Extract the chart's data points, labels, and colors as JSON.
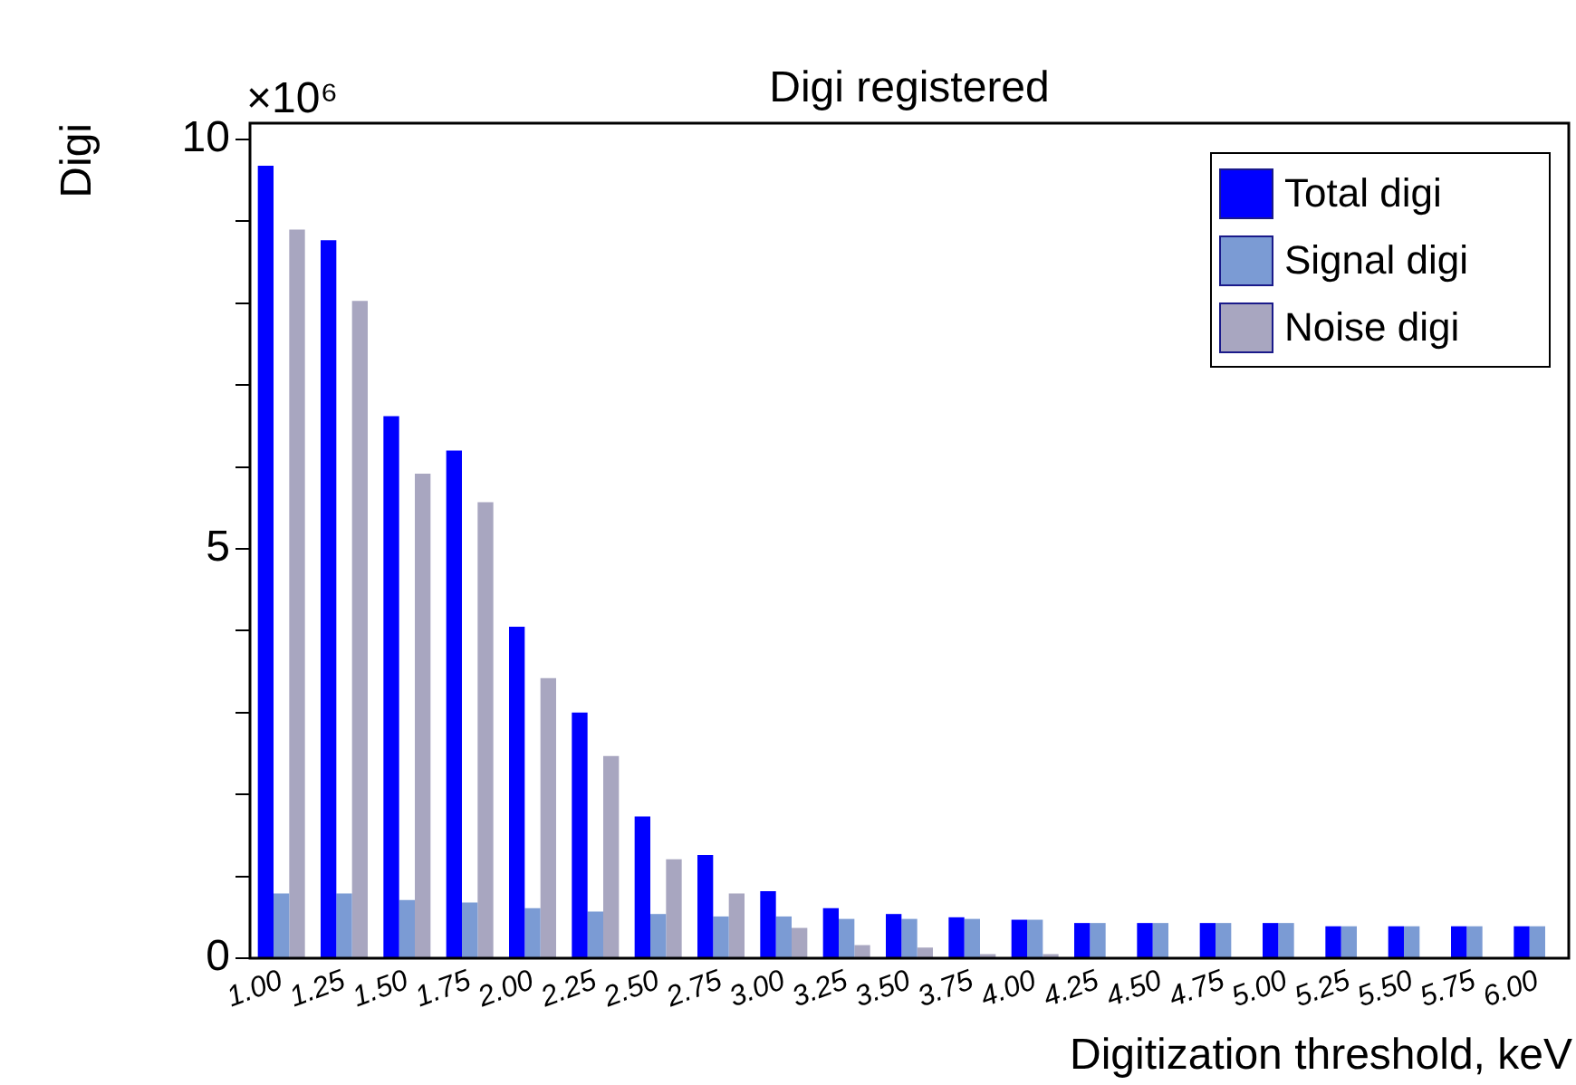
{
  "chart_data": {
    "type": "bar",
    "title": "Digi registered",
    "xlabel": "Digitization threshold, keV",
    "ylabel": "Digi",
    "annotations": [
      "×10⁶"
    ],
    "categories": [
      "1.00",
      "1.25",
      "1.50",
      "1.75",
      "2.00",
      "2.25",
      "2.50",
      "2.75",
      "3.00",
      "3.25",
      "3.50",
      "3.75",
      "4.00",
      "4.25",
      "4.50",
      "4.75",
      "5.00",
      "5.25",
      "5.50",
      "5.75",
      "6.00"
    ],
    "series": [
      {
        "name": "Total digi",
        "color": "#0000ff",
        "values": [
          9.68,
          8.77,
          6.62,
          6.2,
          4.05,
          3.0,
          1.73,
          1.26,
          0.82,
          0.61,
          0.54,
          0.5,
          0.47,
          0.43,
          0.43,
          0.43,
          0.43,
          0.39,
          0.39,
          0.39,
          0.39
        ]
      },
      {
        "name": "Signal digi",
        "color": "#7b9bd4",
        "values": [
          0.79,
          0.79,
          0.71,
          0.68,
          0.61,
          0.57,
          0.54,
          0.51,
          0.51,
          0.48,
          0.48,
          0.48,
          0.47,
          0.43,
          0.43,
          0.43,
          0.43,
          0.39,
          0.39,
          0.39,
          0.39
        ]
      },
      {
        "name": "Noise digi",
        "color": "#a8a6c0",
        "values": [
          8.9,
          8.03,
          5.92,
          5.57,
          3.42,
          2.47,
          1.21,
          0.79,
          0.37,
          0.16,
          0.13,
          0.05,
          0.05,
          0,
          0,
          0,
          0,
          0,
          0,
          0,
          0
        ]
      }
    ],
    "ylim": [
      0,
      10.2
    ],
    "yticks": [
      0,
      {
        "value": 1,
        "label": null
      },
      {
        "value": 2,
        "label": null
      },
      {
        "value": 3,
        "label": null
      },
      {
        "value": 4,
        "label": null
      },
      5,
      {
        "value": 6,
        "label": null
      },
      {
        "value": 7,
        "label": null
      },
      {
        "value": 8,
        "label": null
      },
      {
        "value": 9,
        "label": null
      },
      10
    ],
    "grid": false,
    "legend": "top right"
  }
}
